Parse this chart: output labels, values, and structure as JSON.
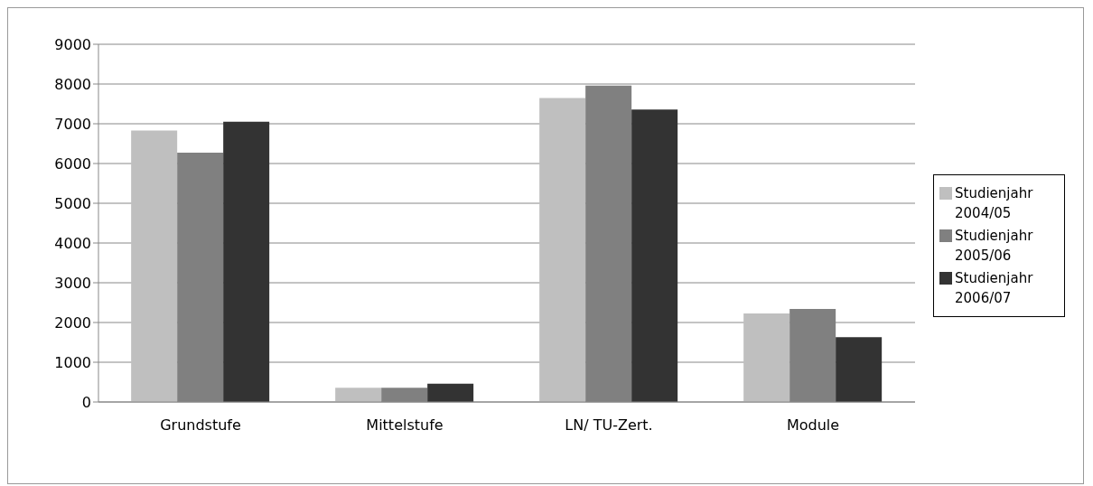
{
  "chart_data": {
    "type": "bar",
    "categories": [
      "Grundstufe",
      "Mittelstufe",
      "LN/ TU-Zert.",
      "Module"
    ],
    "series": [
      {
        "name": "Studienjahr 2004/05",
        "color": "#bfbfbf",
        "values": [
          6830,
          360,
          7650,
          2230
        ]
      },
      {
        "name": "Studienjahr 2005/06",
        "color": "#808080",
        "values": [
          6270,
          360,
          7960,
          2340
        ]
      },
      {
        "name": "Studienjahr 2006/07",
        "color": "#333333",
        "values": [
          7050,
          460,
          7360,
          1630
        ]
      }
    ],
    "ylim": [
      0,
      9000
    ],
    "yticks": [
      0,
      1000,
      2000,
      3000,
      4000,
      5000,
      6000,
      7000,
      8000,
      9000
    ],
    "grid": "y",
    "legend": "right"
  }
}
